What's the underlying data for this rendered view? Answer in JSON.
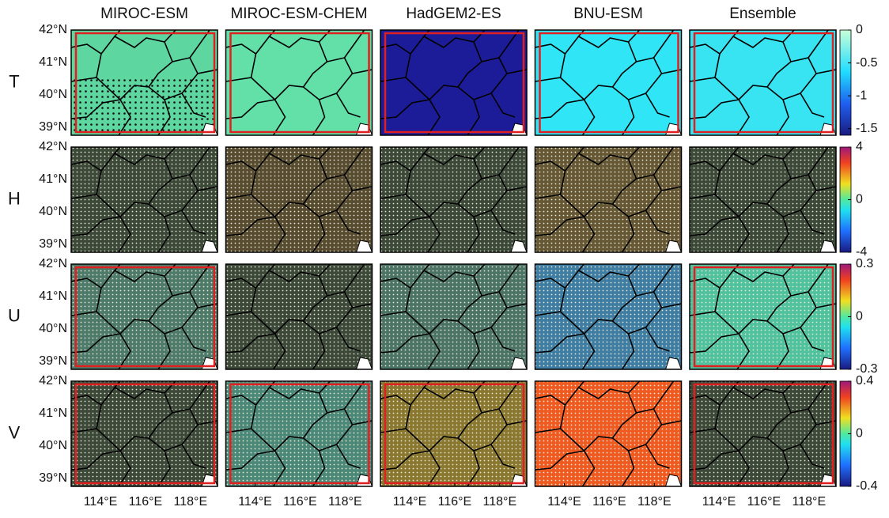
{
  "columns": [
    "MIROC-ESM",
    "MIROC-ESM-CHEM",
    "HadGEM2-ES",
    "BNU-ESM",
    "Ensemble"
  ],
  "rows": [
    {
      "label": "T",
      "colorbar": {
        "lim": [
          -1.6,
          0
        ],
        "ticks": [
          0,
          -0.5,
          -1,
          -1.5
        ]
      }
    },
    {
      "label": "H",
      "colorbar": {
        "lim": [
          -4,
          4
        ],
        "ticks": [
          4,
          0,
          -4
        ]
      }
    },
    {
      "label": "U",
      "colorbar": {
        "lim": [
          -0.3,
          0.3
        ],
        "ticks": [
          0.3,
          0,
          -0.3
        ]
      }
    },
    {
      "label": "V",
      "colorbar": {
        "lim": [
          -0.4,
          0.4
        ],
        "ticks": [
          0.4,
          0,
          -0.4
        ]
      }
    }
  ],
  "lat": {
    "lim": [
      38.75,
      42
    ],
    "ticks": [
      {
        "value": 42,
        "label": "42°N"
      },
      {
        "value": 41,
        "label": "41°N"
      },
      {
        "value": 40,
        "label": "40°N"
      },
      {
        "value": 39,
        "label": "39°N"
      }
    ]
  },
  "lon": {
    "lim": [
      112.7,
      119.2
    ],
    "ticks": [
      {
        "value": 114,
        "label": "114°E"
      },
      {
        "value": 116,
        "label": "116°E"
      },
      {
        "value": 118,
        "label": "118°E"
      }
    ]
  }
}
